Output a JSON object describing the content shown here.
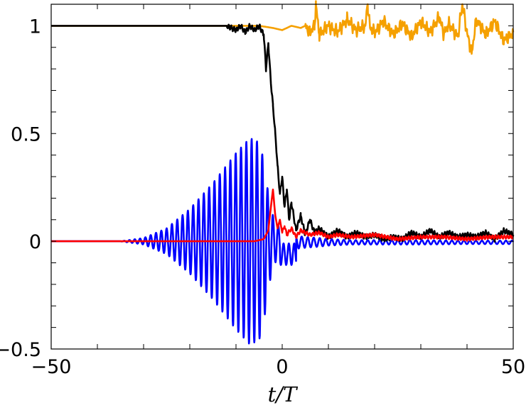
{
  "chart_data": {
    "type": "line",
    "title": "",
    "xlabel": "t/T",
    "ylabel": "",
    "xlim": [
      -50,
      50
    ],
    "ylim": [
      -0.5,
      1.1
    ],
    "x_ticks": [
      -50,
      0,
      50
    ],
    "x_tick_labels": [
      "−50",
      "0",
      "50"
    ],
    "y_ticks": [
      -0.5,
      0,
      0.5,
      1
    ],
    "y_tick_labels": [
      "−0.5",
      "0",
      "0.5",
      "1"
    ],
    "grid": false,
    "legend": "none",
    "series": [
      {
        "color": "#f5a000",
        "x": [
          -50,
          -10,
          -5,
          -2,
          0,
          2,
          4,
          5,
          6,
          7,
          7.3,
          8,
          10,
          12,
          14,
          16,
          18,
          18.5,
          19,
          20,
          22,
          24,
          26,
          28,
          30,
          32,
          34,
          35,
          36,
          38,
          39,
          40,
          41,
          42,
          44,
          46,
          48,
          50
        ],
        "y": [
          1.0,
          1.0,
          1.0,
          0.99,
          0.98,
          1.0,
          0.99,
          1.0,
          0.97,
          1.0,
          1.1,
          0.96,
          1.0,
          0.97,
          1.03,
          0.98,
          1.0,
          1.1,
          0.99,
          0.97,
          1.02,
          0.96,
          1.01,
          0.95,
          1.02,
          0.97,
          1.04,
          0.96,
          1.01,
          0.95,
          1.1,
          0.97,
          0.87,
          1.03,
          0.96,
          1.02,
          0.93,
          0.97
        ]
      },
      {
        "color": "#000000",
        "x": [
          -50,
          -12,
          -10,
          -9,
          -8,
          -7,
          -6,
          -5,
          -4,
          -3.5,
          -3,
          -2.5,
          -2,
          -1.5,
          -1,
          -0.5,
          0,
          0.5,
          1,
          1.5,
          2,
          3,
          4,
          5,
          6,
          7,
          8,
          10,
          12,
          14,
          16,
          18,
          20,
          22,
          24,
          26,
          28,
          30,
          32,
          34,
          36,
          38,
          40,
          42,
          44,
          46,
          48,
          50
        ],
        "y": [
          1.0,
          1.0,
          0.98,
          1.0,
          0.97,
          1.0,
          0.98,
          1.0,
          0.96,
          0.8,
          0.92,
          0.75,
          0.63,
          0.5,
          0.35,
          0.22,
          0.3,
          0.16,
          0.24,
          0.1,
          0.18,
          0.05,
          0.12,
          0.03,
          0.1,
          0.04,
          0.06,
          0.02,
          0.05,
          0.02,
          0.04,
          0.02,
          0.03,
          0.01,
          0.02,
          0.01,
          0.04,
          0.02,
          0.05,
          0.02,
          0.04,
          0.02,
          0.03,
          0.02,
          0.04,
          0.01,
          0.05,
          0.03
        ]
      },
      {
        "color": "#ff0000",
        "x": [
          -50,
          -10,
          -6,
          -4,
          -3,
          -2.5,
          -2,
          -1.5,
          -1,
          -0.5,
          0,
          0.5,
          1,
          2,
          3,
          4,
          6,
          8,
          10,
          12,
          15,
          20,
          25,
          30,
          35,
          40,
          45,
          50
        ],
        "y": [
          0.0,
          0.0,
          0.0,
          0.01,
          0.05,
          0.15,
          0.24,
          0.12,
          0.06,
          0.1,
          0.04,
          0.07,
          0.03,
          0.06,
          0.02,
          0.05,
          0.03,
          0.04,
          0.02,
          0.03,
          0.02,
          0.03,
          0.01,
          0.02,
          0.02,
          0.01,
          0.02,
          0.02
        ]
      },
      {
        "color": "#0000ff",
        "x": [
          -50,
          -35,
          -30,
          -25,
          -20,
          -15,
          -10,
          -7,
          -5,
          -4,
          -3,
          -2,
          -1,
          0,
          1,
          2,
          3,
          5,
          8,
          10,
          15,
          20,
          30,
          40,
          50
        ],
        "y": [
          0.0,
          0.0,
          0.015,
          0.06,
          0.15,
          0.27,
          0.41,
          0.48,
          0.46,
          0.38,
          0.22,
          0.12,
          0.08,
          0.06,
          0.05,
          0.04,
          0.03,
          0.025,
          0.02,
          0.015,
          0.01,
          0.01,
          0.01,
          0.008,
          0.008
        ],
        "note_envelope": "oscillation amplitude envelope"
      }
    ]
  }
}
